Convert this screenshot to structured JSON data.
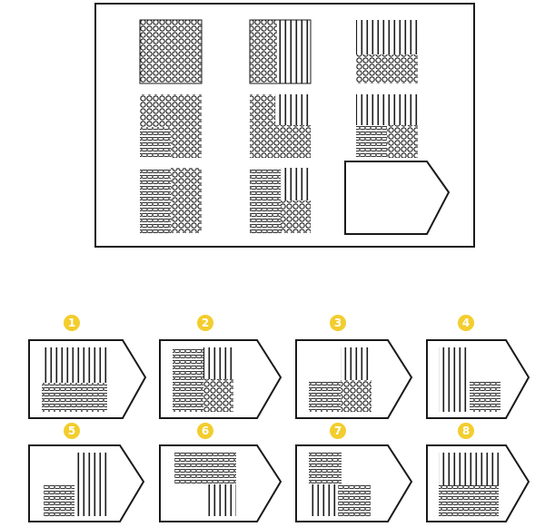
{
  "colors": {
    "ink": "#1a1a1a",
    "paper": "#ffffff",
    "badge_fill": "#f3cd2d",
    "badge_text": "#ffffff"
  },
  "puzzle": {
    "blank_cell": "missing-piece-placeholder"
  },
  "options": [
    {
      "label": "1"
    },
    {
      "label": "2"
    },
    {
      "label": "3"
    },
    {
      "label": "4"
    },
    {
      "label": "5"
    },
    {
      "label": "6"
    },
    {
      "label": "7"
    },
    {
      "label": "8"
    }
  ]
}
